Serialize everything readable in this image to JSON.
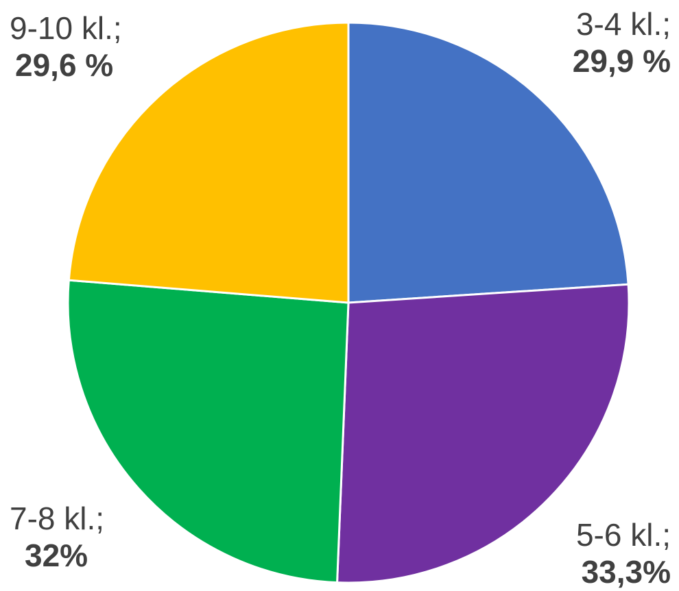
{
  "chart_data": {
    "type": "pie",
    "categories": [
      "3-4 kl.",
      "5-6 kl.",
      "7-8 kl.",
      "9-10 kl."
    ],
    "values": [
      29.9,
      33.3,
      32,
      29.6
    ],
    "colors": [
      "#4472C4",
      "#7030A0",
      "#00B050",
      "#FFC000"
    ],
    "labels": [
      {
        "category": "3-4 kl.;",
        "percent": "29,9 %"
      },
      {
        "category": "5-6 kl.;",
        "percent": "33,3%"
      },
      {
        "category": "7-8 kl.;",
        "percent": "32%"
      },
      {
        "category": "9-10 kl.;",
        "percent": "29,6 %"
      }
    ],
    "start_angle": "12 o'clock",
    "direction": "clockwise",
    "legend": "none",
    "title": ""
  }
}
